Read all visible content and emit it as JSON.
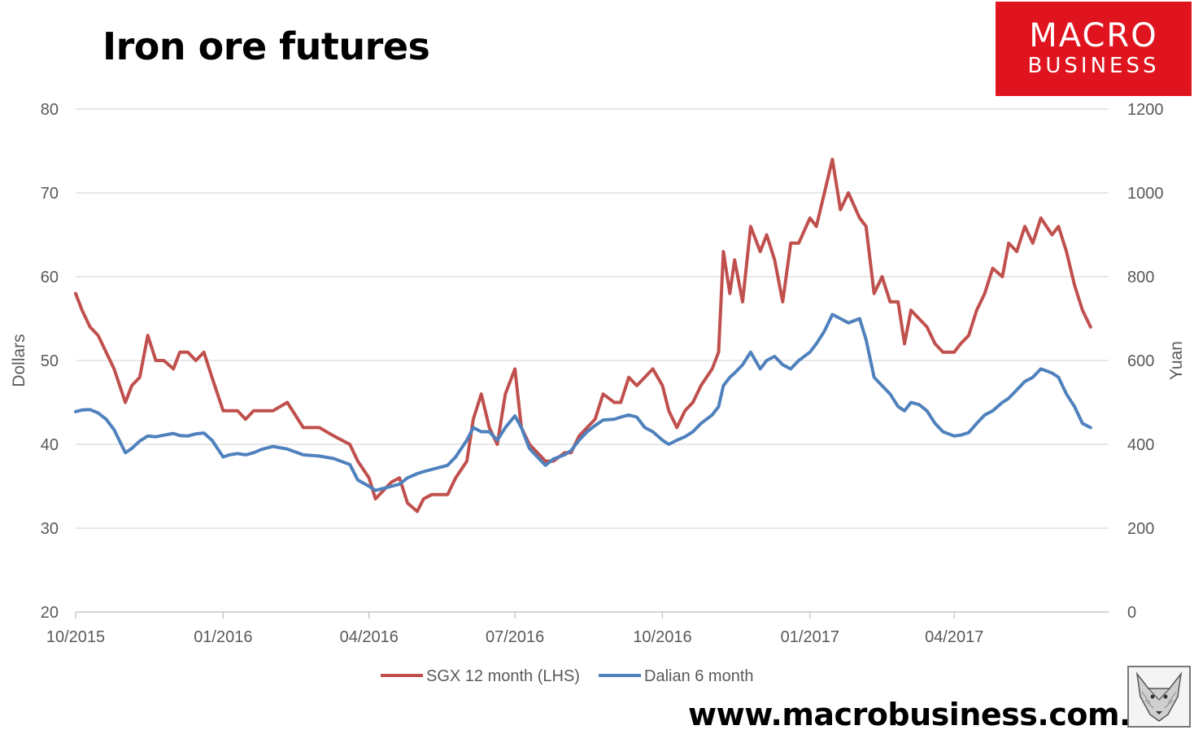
{
  "title": "Iron ore futures",
  "brand": {
    "line1": "MACRO",
    "line2": "BUSINESS",
    "website": "www.macrobusiness.com.au",
    "color": "#e0141e",
    "icon": "fox-icon"
  },
  "chart_data": {
    "type": "line",
    "title": "Iron ore futures",
    "ylabel": "Dollars",
    "y2label": "Yuan",
    "ylim": [
      20,
      80
    ],
    "y2lim": [
      0,
      1200
    ],
    "yticks": [
      80,
      70,
      60,
      50,
      40,
      30,
      20
    ],
    "y2ticks": [
      1200,
      1000,
      800,
      600,
      400,
      200,
      0
    ],
    "grid": true,
    "legend_position": "bottom",
    "x_labels": [
      "10/2015",
      "01/2016",
      "04/2016",
      "07/2016",
      "10/2016",
      "01/2017",
      "04/2017"
    ],
    "x": [
      "2015-10-01",
      "2015-10-05",
      "2015-10-10",
      "2015-10-15",
      "2015-10-20",
      "2015-10-25",
      "2015-11-01",
      "2015-11-05",
      "2015-11-10",
      "2015-11-15",
      "2015-11-20",
      "2015-11-25",
      "2015-12-01",
      "2015-12-05",
      "2015-12-10",
      "2015-12-15",
      "2015-12-20",
      "2015-12-25",
      "2016-01-01",
      "2016-01-05",
      "2016-01-10",
      "2016-01-15",
      "2016-01-20",
      "2016-01-25",
      "2016-02-01",
      "2016-02-10",
      "2016-02-20",
      "2016-03-01",
      "2016-03-10",
      "2016-03-20",
      "2016-03-25",
      "2016-04-01",
      "2016-04-05",
      "2016-04-10",
      "2016-04-15",
      "2016-04-20",
      "2016-04-25",
      "2016-05-01",
      "2016-05-05",
      "2016-05-10",
      "2016-05-15",
      "2016-05-20",
      "2016-05-25",
      "2016-06-01",
      "2016-06-05",
      "2016-06-10",
      "2016-06-15",
      "2016-06-20",
      "2016-06-25",
      "2016-07-01",
      "2016-07-05",
      "2016-07-10",
      "2016-07-15",
      "2016-07-20",
      "2016-07-25",
      "2016-08-01",
      "2016-08-05",
      "2016-08-10",
      "2016-08-15",
      "2016-08-20",
      "2016-08-25",
      "2016-09-01",
      "2016-09-05",
      "2016-09-10",
      "2016-09-15",
      "2016-09-20",
      "2016-09-25",
      "2016-10-01",
      "2016-10-05",
      "2016-10-10",
      "2016-10-15",
      "2016-10-20",
      "2016-10-25",
      "2016-11-01",
      "2016-11-05",
      "2016-11-08",
      "2016-11-12",
      "2016-11-15",
      "2016-11-20",
      "2016-11-25",
      "2016-12-01",
      "2016-12-05",
      "2016-12-10",
      "2016-12-15",
      "2016-12-20",
      "2016-12-25",
      "2017-01-01",
      "2017-01-05",
      "2017-01-10",
      "2017-01-15",
      "2017-01-20",
      "2017-01-25",
      "2017-02-01",
      "2017-02-05",
      "2017-02-10",
      "2017-02-15",
      "2017-02-20",
      "2017-02-25",
      "2017-03-01",
      "2017-03-05",
      "2017-03-10",
      "2017-03-15",
      "2017-03-20",
      "2017-03-25",
      "2017-04-01",
      "2017-04-05",
      "2017-04-10",
      "2017-04-15",
      "2017-04-20",
      "2017-04-25",
      "2017-05-01",
      "2017-05-05",
      "2017-05-10",
      "2017-05-15",
      "2017-05-20",
      "2017-05-25",
      "2017-06-01",
      "2017-06-05",
      "2017-06-10",
      "2017-06-15",
      "2017-06-20",
      "2017-06-25"
    ],
    "series": [
      {
        "name": "SGX 12 month (LHS)",
        "axis": "left",
        "color": "#c0504d",
        "values": [
          58,
          56,
          54,
          53,
          51,
          49,
          45,
          47,
          48,
          53,
          50,
          50,
          49,
          51,
          51,
          50,
          51,
          48,
          44,
          44,
          44,
          43,
          44,
          44,
          44,
          45,
          42,
          42,
          41,
          40,
          38,
          36,
          33.5,
          34.5,
          35.5,
          36,
          33,
          32,
          33.5,
          34,
          34,
          34,
          36,
          38,
          43,
          46,
          42,
          40,
          46,
          49,
          42,
          40,
          39,
          38,
          38,
          39,
          39,
          41,
          42,
          43,
          46,
          45,
          45,
          48,
          47,
          48,
          49,
          47,
          44,
          42,
          44,
          45,
          47,
          49,
          51,
          63,
          58,
          62,
          57,
          66,
          63,
          65,
          62,
          57,
          64,
          64,
          67,
          66,
          70,
          74,
          68,
          70,
          67,
          66,
          58,
          60,
          57,
          57,
          52,
          56,
          55,
          54,
          52,
          51,
          51,
          52,
          53,
          56,
          58,
          61,
          60,
          64,
          63,
          66,
          64,
          67,
          65,
          66,
          63,
          59,
          56,
          54
        ]
      },
      {
        "name": "Dalian 6 month",
        "axis": "right",
        "color": "#4f81bd",
        "values": [
          478,
          482,
          483,
          475,
          460,
          435,
          380,
          390,
          408,
          420,
          418,
          422,
          426,
          421,
          420,
          425,
          427,
          410,
          370,
          375,
          378,
          375,
          380,
          388,
          395,
          389,
          375,
          372,
          366,
          352,
          315,
          300,
          290,
          295,
          300,
          305,
          320,
          330,
          335,
          340,
          345,
          350,
          370,
          410,
          440,
          430,
          430,
          410,
          440,
          468,
          440,
          390,
          370,
          350,
          365,
          375,
          385,
          410,
          430,
          445,
          458,
          460,
          465,
          470,
          465,
          440,
          430,
          410,
          400,
          410,
          418,
          430,
          450,
          470,
          490,
          540,
          560,
          570,
          590,
          620,
          580,
          600,
          610,
          590,
          580,
          600,
          620,
          640,
          670,
          710,
          700,
          690,
          700,
          650,
          560,
          540,
          520,
          490,
          480,
          500,
          495,
          480,
          450,
          430,
          420,
          422,
          428,
          450,
          470,
          480,
          500,
          510,
          530,
          550,
          560,
          580,
          570,
          560,
          520,
          490,
          450,
          440
        ]
      }
    ]
  }
}
